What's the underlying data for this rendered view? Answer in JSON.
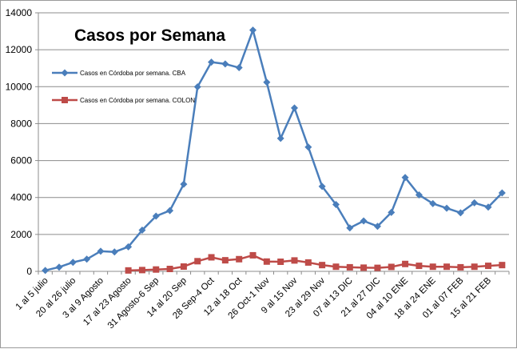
{
  "chart_data": {
    "type": "line",
    "title": "Casos por Semana",
    "xlabel": "",
    "ylabel": "",
    "ylim": [
      0,
      14000
    ],
    "yticks": [
      0,
      2000,
      4000,
      6000,
      8000,
      10000,
      12000,
      14000
    ],
    "grid": true,
    "legend_position": "upper-left",
    "categories": [
      "1 al 5 julio",
      "",
      "20 al 26 julio",
      "",
      "3 al 9 Agosto",
      "",
      "17 al 23 Agosto",
      "",
      "31 Agosto-6 Sep",
      "",
      "14 al 20 Sep",
      "",
      "28 Sep-4 Oct",
      "",
      "12 al 18 Oct",
      "",
      "26 Oct-1 Nov",
      "",
      "9 al 15 Nov",
      "",
      "23 al 29 Nov",
      "",
      "07 al 13 DIC",
      "",
      "21 al 27 DIC",
      "",
      "04 al 10 ENE",
      "",
      "18 al 24 ENE",
      "",
      "01 al 07 FEB",
      "",
      "15 al 21 FEB",
      ""
    ],
    "series": [
      {
        "name": "Casos en Córdoba por semana. CBA",
        "color": "#4a7ebb",
        "marker": "diamond",
        "values": [
          50,
          230,
          490,
          660,
          1090,
          1050,
          1330,
          2230,
          2990,
          3290,
          4720,
          9990,
          11330,
          11230,
          11030,
          13060,
          10240,
          7200,
          8850,
          6730,
          4600,
          3620,
          2350,
          2730,
          2440,
          3190,
          5080,
          4140,
          3670,
          3420,
          3170,
          3710,
          3480,
          4250
        ]
      },
      {
        "name": "Casos en Córdoba por semana. COLON",
        "color": "#be4b48",
        "marker": "square",
        "values": [
          null,
          null,
          null,
          null,
          null,
          null,
          50,
          70,
          100,
          130,
          260,
          550,
          760,
          600,
          660,
          870,
          530,
          520,
          590,
          480,
          340,
          250,
          220,
          200,
          190,
          240,
          400,
          300,
          250,
          250,
          220,
          250,
          300,
          340
        ]
      }
    ]
  }
}
